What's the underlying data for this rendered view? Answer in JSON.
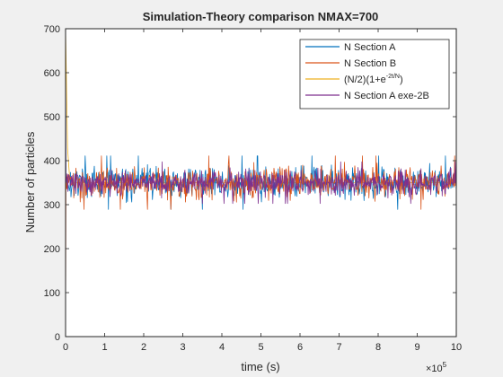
{
  "chart_data": {
    "type": "line",
    "title": "Simulation-Theory comparison NMAX=700",
    "xlabel": "time (s)",
    "ylabel": "Number of particles",
    "x_exponent_label": "×10",
    "x_exponent_power": "5",
    "xlim": [
      0,
      10
    ],
    "ylim": [
      0,
      700
    ],
    "xticks": [
      0,
      1,
      2,
      3,
      4,
      5,
      6,
      7,
      8,
      9,
      10
    ],
    "yticks": [
      0,
      100,
      200,
      300,
      400,
      500,
      600,
      700
    ],
    "legend_position": "top-right",
    "grid": false,
    "series": [
      {
        "name": "N Section A",
        "color": "#0072BD",
        "behavior": "noise",
        "start": 700,
        "mean": 350,
        "band": [
          305,
          395
        ]
      },
      {
        "name": "N Section B",
        "color": "#D95319",
        "behavior": "noise",
        "start": 0,
        "mean": 350,
        "band": [
          305,
          395
        ]
      },
      {
        "name": "(N/2)(1+e^(-2t/N))",
        "color": "#EDB120",
        "behavior": "decay",
        "start": 700,
        "mean": 350,
        "band": [
          350,
          350
        ]
      },
      {
        "name": "N Section A exe-2B",
        "color": "#7E2F8E",
        "behavior": "noise",
        "start": 700,
        "mean": 350,
        "band": [
          315,
          385
        ]
      }
    ],
    "legend_labels": [
      {
        "text": "N Section A"
      },
      {
        "text": "N Section B"
      },
      {
        "text": "(N/2)(1+e",
        "sup": "-2t/N",
        "tail": ")"
      },
      {
        "text": "N Section A exe-2B"
      }
    ]
  }
}
